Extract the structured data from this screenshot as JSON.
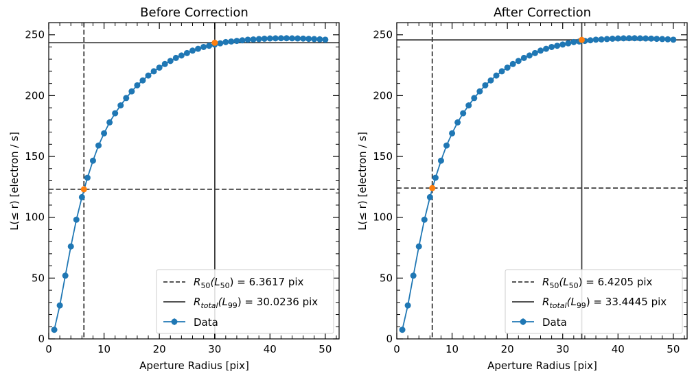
{
  "chart_data": [
    {
      "type": "line",
      "title": "Before Correction",
      "xlabel": "Aperture Radius [pix]",
      "ylabel": "L(≤ r) [electron / s]",
      "xlim": [
        0,
        52.5
      ],
      "ylim": [
        0,
        260
      ],
      "xticks": [
        0,
        10,
        20,
        30,
        40,
        50
      ],
      "yticks": [
        0,
        50,
        100,
        150,
        200,
        250
      ],
      "xtick_labels": [
        "0",
        "10",
        "20",
        "30",
        "40",
        "50"
      ],
      "ytick_labels": [
        "0",
        "50",
        "100",
        "150",
        "200",
        "250"
      ],
      "series": [
        {
          "name": "Data",
          "color": "#1f77b4",
          "x": [
            1,
            2,
            3,
            4,
            5,
            6,
            7,
            8,
            9,
            10,
            11,
            12,
            13,
            14,
            15,
            16,
            17,
            18,
            19,
            20,
            21,
            22,
            23,
            24,
            25,
            26,
            27,
            28,
            29,
            30,
            31,
            32,
            33,
            34,
            35,
            36,
            37,
            38,
            39,
            40,
            41,
            42,
            43,
            44,
            45,
            46,
            47,
            48,
            49,
            50
          ],
          "y": [
            7.5,
            27.5,
            52,
            76,
            98,
            116.5,
            132.5,
            146.5,
            159,
            169,
            178,
            185.5,
            192,
            198,
            203.5,
            208.5,
            212.5,
            216.5,
            220,
            223,
            226,
            228.5,
            231,
            233,
            235,
            237,
            238.5,
            240,
            241,
            242,
            243,
            244,
            244.5,
            245,
            245.5,
            246,
            246.2,
            246.5,
            246.8,
            247,
            247.1,
            247.2,
            247.2,
            247.1,
            247,
            246.9,
            246.7,
            246.5,
            246.3,
            246
          ]
        }
      ],
      "markers": [
        {
          "x": 6.3617,
          "y": 123,
          "color": "#ff7f0e"
        },
        {
          "x": 30.0236,
          "y": 243.5,
          "color": "#ff7f0e"
        }
      ],
      "lines": [
        {
          "kind": "vline",
          "value": 6.3617,
          "style": "dashed"
        },
        {
          "kind": "hline",
          "value": 123,
          "style": "dashed"
        },
        {
          "kind": "vline",
          "value": 30.0236,
          "style": "solid"
        },
        {
          "kind": "hline",
          "value": 243.5,
          "style": "solid"
        }
      ],
      "legend": {
        "position": "lower-right",
        "r50_label": "R",
        "r50_sub": "50",
        "r50_mid": "(L",
        "r50_sub2": "50",
        "r50_tail": ") = 6.3617 pix",
        "rtot_label": "R",
        "rtot_sub": "total",
        "rtot_mid": "(L",
        "rtot_sub2": "99",
        "rtot_tail": ") = 30.0236 pix",
        "data_label": "Data"
      }
    },
    {
      "type": "line",
      "title": "After Correction",
      "xlabel": "Aperture Radius [pix]",
      "ylabel": "L(≤ r) [electron / s]",
      "xlim": [
        0,
        52.5
      ],
      "ylim": [
        0,
        260
      ],
      "xticks": [
        0,
        10,
        20,
        30,
        40,
        50
      ],
      "yticks": [
        0,
        50,
        100,
        150,
        200,
        250
      ],
      "xtick_labels": [
        "0",
        "10",
        "20",
        "30",
        "40",
        "50"
      ],
      "ytick_labels": [
        "0",
        "50",
        "100",
        "150",
        "200",
        "250"
      ],
      "series": [
        {
          "name": "Data",
          "color": "#1f77b4",
          "x": [
            1,
            2,
            3,
            4,
            5,
            6,
            7,
            8,
            9,
            10,
            11,
            12,
            13,
            14,
            15,
            16,
            17,
            18,
            19,
            20,
            21,
            22,
            23,
            24,
            25,
            26,
            27,
            28,
            29,
            30,
            31,
            32,
            33,
            34,
            35,
            36,
            37,
            38,
            39,
            40,
            41,
            42,
            43,
            44,
            45,
            46,
            47,
            48,
            49,
            50
          ],
          "y": [
            7.5,
            27.5,
            52,
            76,
            98,
            116.5,
            132.5,
            146.5,
            159,
            169,
            178,
            185.5,
            192,
            198,
            203.5,
            208.5,
            212.5,
            216.5,
            220,
            223,
            226,
            228.5,
            231,
            233,
            235,
            237,
            238.5,
            240,
            241,
            242,
            243,
            244,
            244.5,
            245,
            245.5,
            246,
            246.2,
            246.5,
            246.8,
            247,
            247.1,
            247.2,
            247.2,
            247.1,
            247,
            246.9,
            246.7,
            246.5,
            246.3,
            246
          ]
        }
      ],
      "markers": [
        {
          "x": 6.4205,
          "y": 124,
          "color": "#ff7f0e"
        },
        {
          "x": 33.4445,
          "y": 245.8,
          "color": "#ff7f0e"
        }
      ],
      "lines": [
        {
          "kind": "vline",
          "value": 6.4205,
          "style": "dashed"
        },
        {
          "kind": "hline",
          "value": 124,
          "style": "dashed"
        },
        {
          "kind": "vline",
          "value": 33.4445,
          "style": "solid"
        },
        {
          "kind": "hline",
          "value": 245.8,
          "style": "solid"
        }
      ],
      "legend": {
        "position": "lower-right",
        "r50_label": "R",
        "r50_sub": "50",
        "r50_mid": "(L",
        "r50_sub2": "50",
        "r50_tail": ") = 6.4205 pix",
        "rtot_label": "R",
        "rtot_sub": "total",
        "rtot_mid": "(L",
        "rtot_sub2": "99",
        "rtot_tail": ") = 33.4445 pix",
        "data_label": "Data"
      }
    }
  ]
}
